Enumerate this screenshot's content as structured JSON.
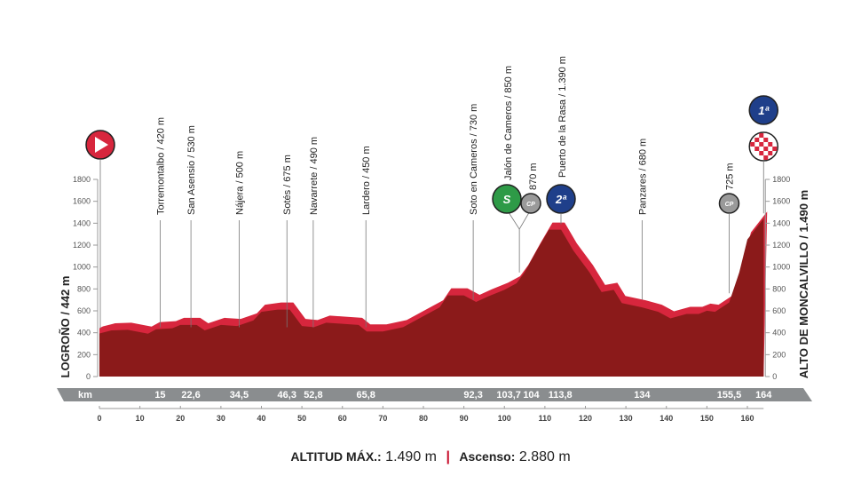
{
  "chart_data": {
    "type": "area",
    "title": "",
    "xlabel": "km",
    "ylabel": "",
    "xlim": [
      0,
      164
    ],
    "ylim": [
      0,
      1800
    ],
    "x_ticks": [
      0,
      10,
      20,
      30,
      40,
      50,
      60,
      70,
      80,
      90,
      100,
      110,
      120,
      130,
      140,
      150,
      160
    ],
    "y_ticks": [
      0,
      200,
      400,
      600,
      800,
      1000,
      1200,
      1400,
      1600,
      1800
    ],
    "start_label": "LOGROÑO / 442 m",
    "finish_label": "ALTO DE MONCALVILLO / 1.490 m",
    "km_bar_label": "km",
    "profile": {
      "km": [
        0,
        3,
        7,
        12,
        14,
        18,
        20,
        24,
        26,
        30,
        34,
        38,
        40,
        44,
        47,
        50,
        53,
        56,
        60,
        64,
        66,
        70,
        75,
        80,
        84,
        86,
        90,
        93,
        96,
        100,
        103,
        105,
        108,
        111,
        114,
        117,
        121,
        124,
        127,
        129,
        134,
        138,
        141,
        145,
        148,
        150,
        152,
        155.5,
        158,
        160,
        164
      ],
      "elevation": [
        442,
        470,
        475,
        440,
        480,
        490,
        520,
        520,
        470,
        520,
        510,
        560,
        640,
        660,
        660,
        510,
        500,
        540,
        530,
        520,
        460,
        460,
        500,
        600,
        680,
        790,
        790,
        730,
        780,
        840,
        900,
        1000,
        1200,
        1390,
        1390,
        1200,
        1000,
        820,
        840,
        720,
        680,
        640,
        580,
        620,
        620,
        650,
        640,
        725,
        1000,
        1300,
        1490
      ]
    },
    "waypoints": [
      {
        "km": 15,
        "km_label": "15",
        "label": "Torremontalbo / 420 m"
      },
      {
        "km": 22.6,
        "km_label": "22,6",
        "label": "San Asensio / 530 m"
      },
      {
        "km": 34.5,
        "km_label": "34,5",
        "label": "Nájera / 500 m"
      },
      {
        "km": 46.3,
        "km_label": "46,3",
        "label": "Sotés / 675 m"
      },
      {
        "km": 52.8,
        "km_label": "52,8",
        "label": "Navarrete / 490 m"
      },
      {
        "km": 65.8,
        "km_label": "65,8",
        "label": "Lardero / 450 m"
      },
      {
        "km": 92.3,
        "km_label": "92,3",
        "label": "Soto en Cameros / 730 m"
      },
      {
        "km": 103.7,
        "km_label": "103,7",
        "label": "Jalón de Cameros / 850 m",
        "icon": "sprint"
      },
      {
        "km": 104,
        "km_label": "104",
        "label": "870 m",
        "icon": "cp"
      },
      {
        "km": 113.8,
        "km_label": "113,8",
        "label": "Puerto de la Rasa / 1.390 m",
        "icon": "2a"
      },
      {
        "km": 134,
        "km_label": "134",
        "label": "Panzares / 680 m"
      },
      {
        "km": 155.5,
        "km_label": "155,5",
        "label": "725 m",
        "icon": "cp"
      },
      {
        "km": 164,
        "km_label": "164",
        "label": "",
        "icon": "1a"
      }
    ],
    "category_labels": {
      "sprint": "S",
      "2a": "2ª",
      "1a": "1ª",
      "cp": "CP"
    },
    "colors": {
      "profile_face": "#8b1a1a",
      "profile_edge": "#d7263d",
      "km_bar": "#8a8d8f",
      "sprint": "#2e9a47",
      "climb": "#1f3f8a",
      "cp": "#9a9a9a",
      "start": "#d7263d"
    }
  },
  "footer": {
    "altitud_label": "ALTITUD MÁX.:",
    "altitud_value": "1.490 m",
    "ascenso_label": "Ascenso:",
    "ascenso_value": "2.880 m"
  }
}
